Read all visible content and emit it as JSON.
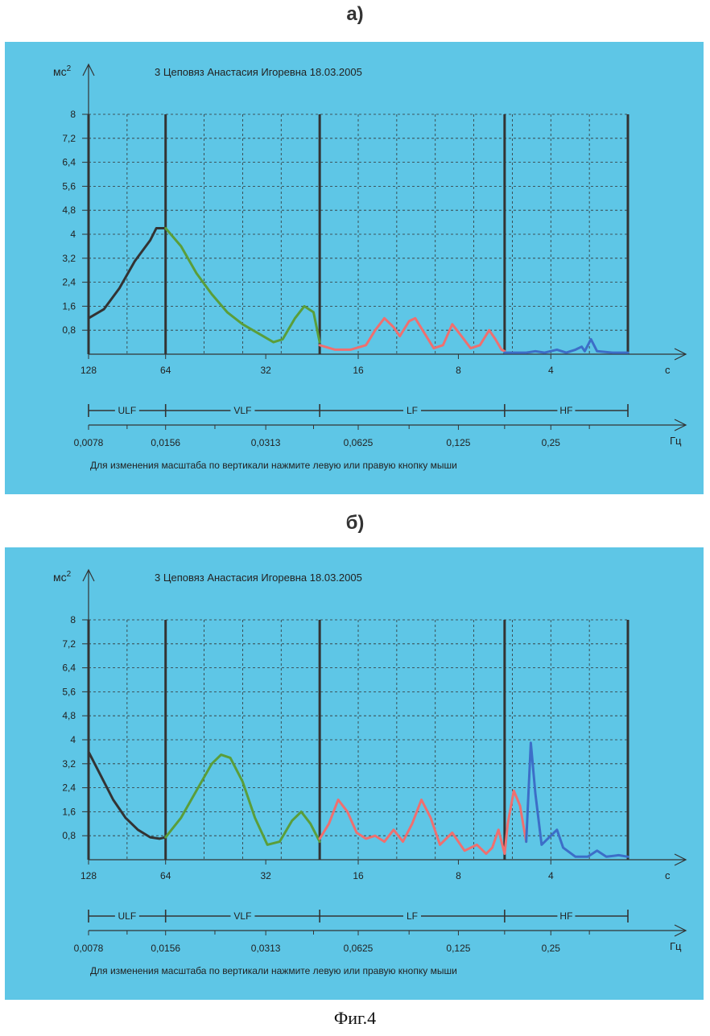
{
  "figure_caption": "Фиг.4",
  "chart_data": [
    {
      "type": "line",
      "panel_label": "а)",
      "title": "3 Цеповяз Анастасия Игоревна 18.03.2005",
      "ylabel": "мс2",
      "ylabel_base": "мс",
      "ylabel_sup": "2",
      "ylim": [
        0,
        8
      ],
      "yticks": [
        "0,8",
        "1,6",
        "2,4",
        "3,2",
        "4",
        "4,8",
        "5,6",
        "6,4",
        "7,2",
        "8"
      ],
      "yvalues": [
        0.8,
        1.6,
        2.4,
        3.2,
        4,
        4.8,
        5.6,
        6.4,
        7.2,
        8
      ],
      "period_unit": "с",
      "period_ticks": [
        "128",
        "64",
        "32",
        "16",
        "8",
        "4"
      ],
      "freq_unit": "Гц",
      "freq_ticks": [
        "0,0078",
        "0,0156",
        "0,0313",
        "0,0625",
        "0,125",
        "0,25"
      ],
      "bands": [
        "ULF",
        "VLF",
        "LF",
        "HF"
      ],
      "grid": true,
      "note": "Для изменения масштаба по вертикали нажмите левую или правую кнопку мыши",
      "x_unit_range": [
        0,
        18.5
      ],
      "band_bounds": [
        0,
        2.5,
        7.5,
        13.5,
        17.5
      ],
      "series": [
        {
          "band": "ULF",
          "color": "#333333",
          "points": [
            [
              0,
              1.2
            ],
            [
              0.5,
              1.5
            ],
            [
              1,
              2.2
            ],
            [
              1.5,
              3.1
            ],
            [
              2,
              3.8
            ],
            [
              2.2,
              4.2
            ],
            [
              2.5,
              4.2
            ]
          ]
        },
        {
          "band": "VLF",
          "color": "#5a9e3a",
          "points": [
            [
              2.5,
              4.2
            ],
            [
              3,
              3.6
            ],
            [
              3.5,
              2.7
            ],
            [
              4,
              2.0
            ],
            [
              4.5,
              1.4
            ],
            [
              5,
              1.0
            ],
            [
              5.5,
              0.7
            ],
            [
              6,
              0.4
            ],
            [
              6.3,
              0.5
            ],
            [
              6.7,
              1.2
            ],
            [
              7,
              1.6
            ],
            [
              7.3,
              1.4
            ],
            [
              7.5,
              0.4
            ]
          ]
        },
        {
          "band": "LF",
          "color": "#ef6f6f",
          "points": [
            [
              7.5,
              0.3
            ],
            [
              8,
              0.15
            ],
            [
              8.5,
              0.15
            ],
            [
              9,
              0.3
            ],
            [
              9.3,
              0.8
            ],
            [
              9.6,
              1.2
            ],
            [
              9.9,
              0.9
            ],
            [
              10.1,
              0.6
            ],
            [
              10.4,
              1.1
            ],
            [
              10.6,
              1.2
            ],
            [
              10.9,
              0.7
            ],
            [
              11.2,
              0.2
            ],
            [
              11.5,
              0.3
            ],
            [
              11.8,
              1.0
            ],
            [
              12.1,
              0.6
            ],
            [
              12.4,
              0.2
            ],
            [
              12.7,
              0.3
            ],
            [
              13,
              0.8
            ],
            [
              13.2,
              0.5
            ],
            [
              13.4,
              0.15
            ],
            [
              13.5,
              0.1
            ]
          ]
        },
        {
          "band": "HF",
          "color": "#3c6ec8",
          "points": [
            [
              13.5,
              0.05
            ],
            [
              14.2,
              0.05
            ],
            [
              14.5,
              0.1
            ],
            [
              14.8,
              0.05
            ],
            [
              15.2,
              0.15
            ],
            [
              15.5,
              0.05
            ],
            [
              15.8,
              0.15
            ],
            [
              16,
              0.25
            ],
            [
              16.1,
              0.1
            ],
            [
              16.3,
              0.5
            ],
            [
              16.5,
              0.1
            ],
            [
              17,
              0.05
            ],
            [
              17.5,
              0.05
            ]
          ]
        }
      ]
    },
    {
      "type": "line",
      "panel_label": "б)",
      "title": "3 Цеповяз Анастасия Игоревна 18.03.2005",
      "ylabel": "мс2",
      "ylabel_base": "мс",
      "ylabel_sup": "2",
      "ylim": [
        0,
        8
      ],
      "yticks": [
        "0,8",
        "1,6",
        "2,4",
        "3,2",
        "4",
        "4,8",
        "5,6",
        "6,4",
        "7,2",
        "8"
      ],
      "yvalues": [
        0.8,
        1.6,
        2.4,
        3.2,
        4,
        4.8,
        5.6,
        6.4,
        7.2,
        8
      ],
      "period_unit": "с",
      "period_ticks": [
        "128",
        "64",
        "32",
        "16",
        "8",
        "4"
      ],
      "freq_unit": "Гц",
      "freq_ticks": [
        "0,0078",
        "0,0156",
        "0,0313",
        "0,0625",
        "0,125",
        "0,25"
      ],
      "bands": [
        "ULF",
        "VLF",
        "LF",
        "HF"
      ],
      "grid": true,
      "note": "Для изменения масштаба по вертикали нажмите левую или правую кнопку мыши",
      "x_unit_range": [
        0,
        18.5
      ],
      "band_bounds": [
        0,
        2.5,
        7.5,
        13.5,
        17.5
      ],
      "series": [
        {
          "band": "ULF",
          "color": "#333333",
          "points": [
            [
              0,
              3.6
            ],
            [
              0.4,
              2.8
            ],
            [
              0.8,
              2.0
            ],
            [
              1.2,
              1.4
            ],
            [
              1.6,
              1.0
            ],
            [
              2,
              0.75
            ],
            [
              2.3,
              0.7
            ],
            [
              2.5,
              0.75
            ]
          ]
        },
        {
          "band": "VLF",
          "color": "#5a9e3a",
          "points": [
            [
              2.5,
              0.75
            ],
            [
              3,
              1.4
            ],
            [
              3.5,
              2.3
            ],
            [
              4,
              3.2
            ],
            [
              4.3,
              3.5
            ],
            [
              4.6,
              3.4
            ],
            [
              5,
              2.6
            ],
            [
              5.4,
              1.4
            ],
            [
              5.8,
              0.5
            ],
            [
              6.2,
              0.6
            ],
            [
              6.6,
              1.3
            ],
            [
              6.9,
              1.6
            ],
            [
              7.2,
              1.2
            ],
            [
              7.5,
              0.6
            ]
          ]
        },
        {
          "band": "LF",
          "color": "#ef6f6f",
          "points": [
            [
              7.5,
              0.7
            ],
            [
              7.8,
              1.2
            ],
            [
              8.1,
              2.0
            ],
            [
              8.4,
              1.6
            ],
            [
              8.7,
              0.9
            ],
            [
              9,
              0.7
            ],
            [
              9.3,
              0.8
            ],
            [
              9.6,
              0.6
            ],
            [
              9.9,
              1.0
            ],
            [
              10.2,
              0.6
            ],
            [
              10.5,
              1.2
            ],
            [
              10.8,
              2.0
            ],
            [
              11.1,
              1.4
            ],
            [
              11.4,
              0.5
            ],
            [
              11.8,
              0.9
            ],
            [
              12.2,
              0.3
            ],
            [
              12.6,
              0.5
            ],
            [
              12.9,
              0.2
            ],
            [
              13.1,
              0.4
            ],
            [
              13.3,
              1.0
            ],
            [
              13.5,
              0.2
            ],
            [
              13.6,
              1.2
            ],
            [
              13.8,
              2.3
            ],
            [
              14,
              1.8
            ],
            [
              14.1,
              1.2
            ],
            [
              14.2,
              0.6
            ]
          ]
        },
        {
          "band": "HF",
          "color": "#3c6ec8",
          "points": [
            [
              14.2,
              0.6
            ],
            [
              14.35,
              3.9
            ],
            [
              14.5,
              2.2
            ],
            [
              14.7,
              0.5
            ],
            [
              15,
              0.8
            ],
            [
              15.2,
              1.0
            ],
            [
              15.4,
              0.4
            ],
            [
              15.8,
              0.1
            ],
            [
              16.2,
              0.1
            ],
            [
              16.5,
              0.3
            ],
            [
              16.8,
              0.1
            ],
            [
              17.2,
              0.15
            ],
            [
              17.5,
              0.1
            ]
          ]
        }
      ]
    }
  ]
}
